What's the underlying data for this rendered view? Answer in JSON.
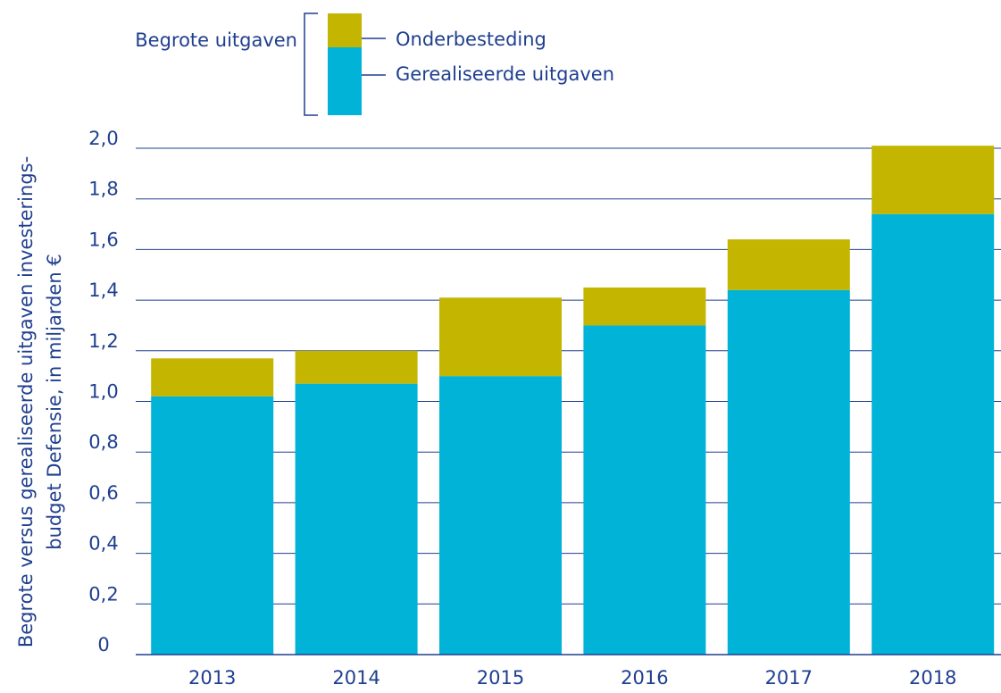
{
  "chart_data": {
    "type": "stacked_bar",
    "ylabel": [
      "Begrote versus gerealiseerde uitgaven investerings-",
      "budget Defensie, in miljarden €"
    ],
    "legend_group": "Begrote uitgaven",
    "categories": [
      "2013",
      "2014",
      "2015",
      "2016",
      "2017",
      "2018"
    ],
    "series": [
      {
        "name": "Gerealiseerde uitgaven",
        "color": "#00b3d7",
        "values": [
          1.02,
          1.07,
          1.1,
          1.3,
          1.44,
          1.74
        ]
      },
      {
        "name": "Onderbesteding",
        "color": "#c3b500",
        "values": [
          0.15,
          0.13,
          0.31,
          0.15,
          0.2,
          0.27
        ]
      }
    ],
    "ylim": [
      0,
      2.0
    ],
    "yticks": [
      0,
      {
        "value": 0.2,
        "label": "0,2"
      },
      {
        "value": 0.4,
        "label": "0,4"
      },
      {
        "value": 0.6,
        "label": "0,6"
      },
      {
        "value": 0.8,
        "label": "0,8"
      },
      {
        "value": 1.0,
        "label": "1,0"
      },
      {
        "value": 1.2,
        "label": "1,2"
      },
      {
        "value": 1.4,
        "label": "1,4"
      },
      {
        "value": 1.6,
        "label": "1,6"
      },
      {
        "value": 1.8,
        "label": "1,8"
      },
      {
        "value": 2.0,
        "label": "2,0"
      }
    ],
    "grid": true
  }
}
